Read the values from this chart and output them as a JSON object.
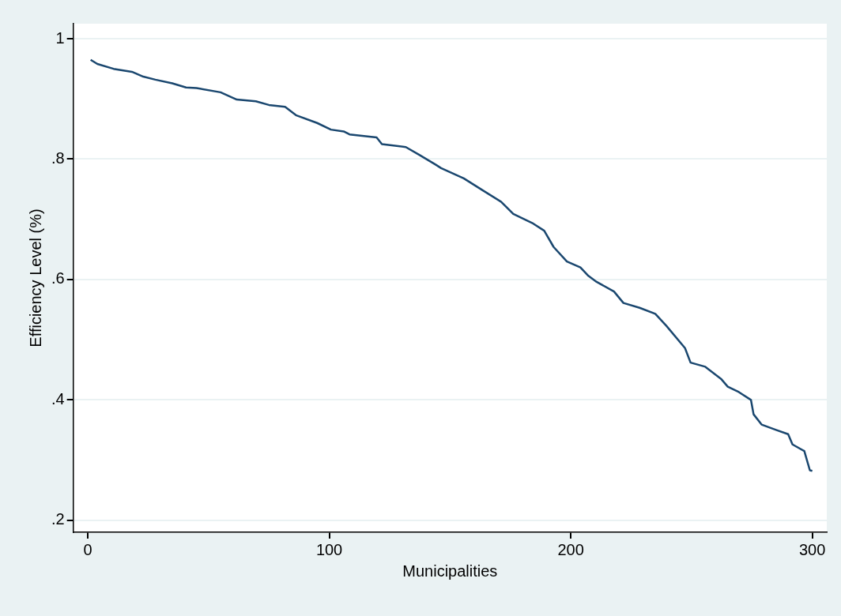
{
  "chart_data": {
    "type": "line",
    "xlabel": "Municipalities",
    "ylabel": "Efficiency Level (%)",
    "x": [
      1.2,
      4,
      10.7,
      18.3,
      23,
      28,
      35,
      40.7,
      45,
      55,
      61.7,
      69.6,
      75,
      81.7,
      86.2,
      95,
      100.7,
      106,
      108.4,
      119.6,
      121.8,
      131.7,
      137.3,
      144,
      146.3,
      155.7,
      164,
      171.2,
      176.2,
      184,
      189,
      192.9,
      198.4,
      204,
      207.3,
      210.7,
      217.9,
      221.8,
      228.5,
      235,
      239.6,
      247.3,
      249.6,
      255.7,
      262.2,
      265,
      269.6,
      274.6,
      275.7,
      279,
      285,
      290,
      291.8,
      296.7,
      299,
      300
    ],
    "series": [
      {
        "color": "#1a476f",
        "values": [
          0.965,
          0.958,
          0.95,
          0.945,
          0.937,
          0.932,
          0.926,
          0.919,
          0.918,
          0.911,
          0.899,
          0.896,
          0.89,
          0.887,
          0.873,
          0.86,
          0.849,
          0.846,
          0.841,
          0.836,
          0.825,
          0.82,
          0.807,
          0.791,
          0.785,
          0.768,
          0.747,
          0.729,
          0.709,
          0.694,
          0.681,
          0.654,
          0.63,
          0.62,
          0.606,
          0.596,
          0.58,
          0.561,
          0.553,
          0.543,
          0.523,
          0.486,
          0.462,
          0.455,
          0.435,
          0.422,
          0.413,
          0.4,
          0.376,
          0.359,
          0.35,
          0.343,
          0.326,
          0.315,
          0.283,
          0.282
        ]
      }
    ],
    "xlim": [
      -6,
      306
    ],
    "xticks": [
      0,
      100,
      200,
      300
    ],
    "ylim": [
      0.18,
      1.025
    ],
    "yticks": [
      {
        "value": 0.2,
        "label": ".2"
      },
      {
        "value": 0.4,
        "label": ".4"
      },
      {
        "value": 0.6,
        "label": ".6"
      },
      {
        "value": 0.8,
        "label": ".8"
      },
      {
        "value": 1,
        "label": "1"
      }
    ],
    "grid": "y",
    "legend": false,
    "marker": "none",
    "line_style": "solid"
  }
}
